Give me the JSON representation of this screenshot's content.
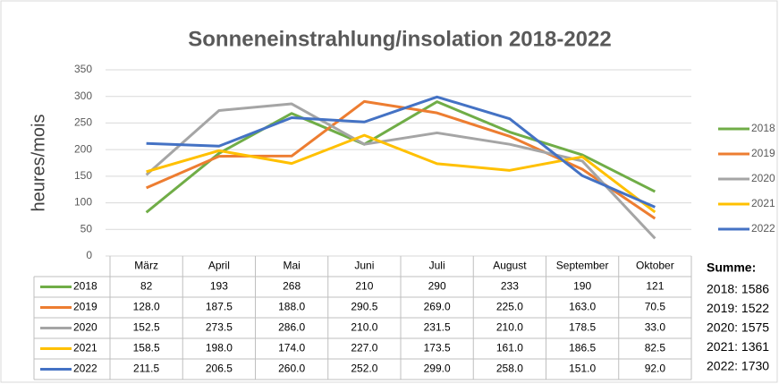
{
  "chart_data": {
    "type": "line",
    "title": "Sonneneinstrahlung/insolation 2018-2022",
    "y_label": "heures/mois",
    "categories": [
      "März",
      "April",
      "Mai",
      "Juni",
      "Juli",
      "August",
      "September",
      "Oktober"
    ],
    "ylim": [
      0,
      350
    ],
    "yticks": [
      0,
      50,
      100,
      150,
      200,
      250,
      300,
      350
    ],
    "grid": true,
    "legend": "right",
    "series": [
      {
        "name": "2018",
        "color": "#70ad47",
        "values": [
          82,
          193,
          268,
          210,
          290,
          233,
          190,
          121
        ]
      },
      {
        "name": "2019",
        "color": "#ed7d31",
        "values": [
          128,
          187.5,
          188,
          290.5,
          269,
          225,
          163,
          70.5
        ],
        "value_labels": [
          "128.0",
          "187.5",
          "188.0",
          "290.5",
          "269.0",
          "225.0",
          "163.0",
          "70.5"
        ]
      },
      {
        "name": "2020",
        "color": "#a5a5a5",
        "values": [
          152.5,
          273.5,
          286,
          210,
          231.5,
          210,
          178.5,
          33
        ],
        "value_labels": [
          "152.5",
          "273.5",
          "286.0",
          "210.0",
          "231.5",
          "210.0",
          "178.5",
          "33.0"
        ]
      },
      {
        "name": "2021",
        "color": "#ffc000",
        "values": [
          158.5,
          198,
          174,
          227,
          173.5,
          161,
          186.5,
          82.5
        ],
        "value_labels": [
          "158.5",
          "198.0",
          "174.0",
          "227.0",
          "173.5",
          "161.0",
          "186.5",
          "82.5"
        ]
      },
      {
        "name": "2022",
        "color": "#4472c4",
        "values": [
          211.5,
          206.5,
          260,
          252,
          299,
          258,
          151,
          92
        ],
        "value_labels": [
          "211.5",
          "206.5",
          "260.0",
          "252.0",
          "299.0",
          "258.0",
          "151.0",
          "92.0"
        ]
      }
    ],
    "summary": {
      "title": "Summe:",
      "lines": [
        "2018: 1586",
        "2019: 1522",
        "2020: 1575",
        "2021: 1361",
        "2022: 1730"
      ]
    }
  }
}
